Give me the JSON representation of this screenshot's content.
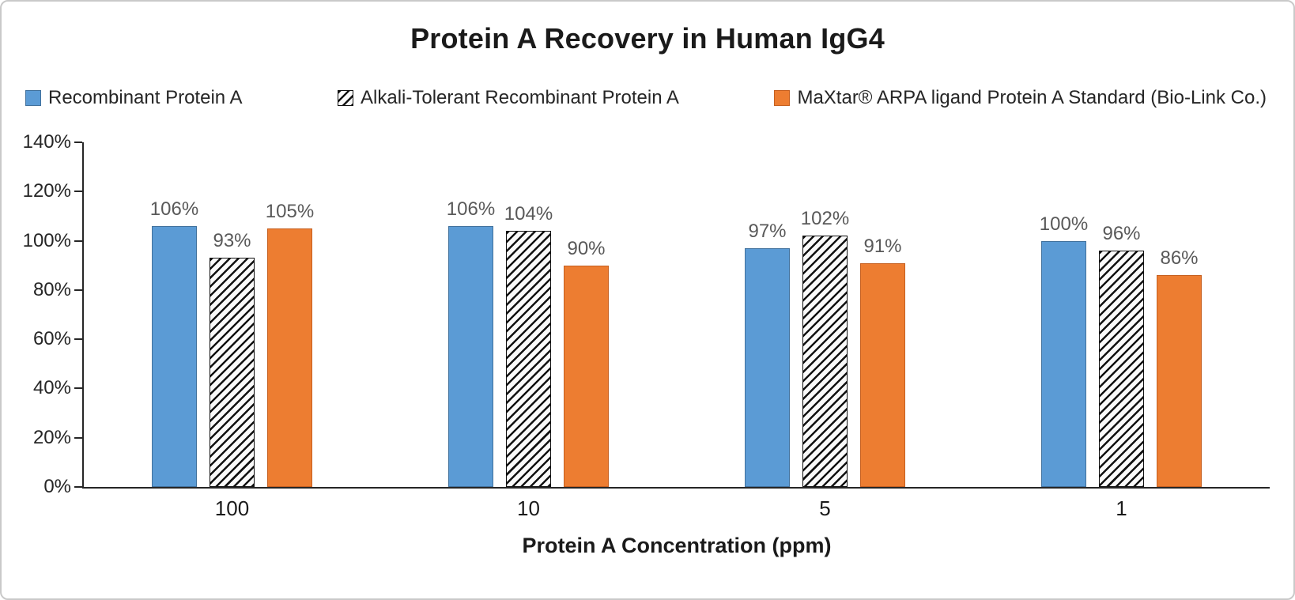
{
  "chart_data": {
    "type": "bar",
    "title": "Protein A Recovery in Human IgG4",
    "xlabel": "Protein A Concentration (ppm)",
    "ylabel": "",
    "categories": [
      "100",
      "10",
      "5",
      "1"
    ],
    "series": [
      {
        "name": "Recombinant Protein A",
        "values": [
          106,
          106,
          97,
          100
        ],
        "pattern": "solid",
        "color": "#5B9BD5",
        "border_color": "#41719C"
      },
      {
        "name": "Alkali-Tolerant Recombinant Protein A",
        "values": [
          93,
          104,
          102,
          96
        ],
        "pattern": "diagonal-hatch",
        "color": "#FAFAFA",
        "pattern_color": "#111111",
        "border_color": "#111111"
      },
      {
        "name": "MaXtar® ARPA ligand Protein A Standard (Bio-Link Co.)",
        "values": [
          105,
          90,
          91,
          86
        ],
        "pattern": "solid",
        "color": "#ED7D31",
        "border_color": "#C55F1F"
      }
    ],
    "value_label_format": "{v}%",
    "ylim": [
      0,
      140
    ],
    "ytick_step": 20,
    "ytick_labels": [
      "0%",
      "20%",
      "40%",
      "60%",
      "80%",
      "100%",
      "120%",
      "140%"
    ],
    "grid": false,
    "legend_position": "top",
    "colors": {
      "value_label": "#595959",
      "axis": "#262626",
      "title": "#1A1A1A"
    }
  }
}
